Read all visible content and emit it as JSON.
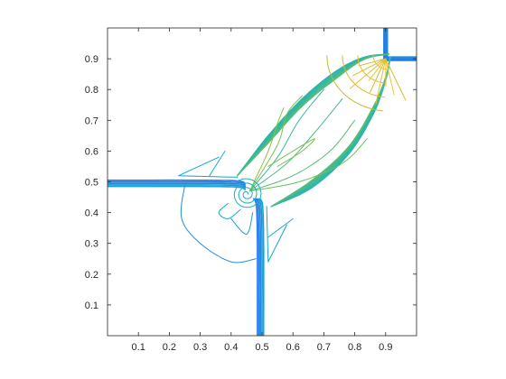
{
  "chart_data": {
    "type": "contour",
    "title": "",
    "xlabel": "",
    "ylabel": "",
    "xlim": [
      0,
      1
    ],
    "ylim": [
      0,
      1
    ],
    "grid": false,
    "legend": "none",
    "colormap": "parula",
    "x_ticks": [
      0.1,
      0.2,
      0.3,
      0.4,
      0.5,
      0.6,
      0.7,
      0.8,
      0.9
    ],
    "x_tick_labels": [
      "0.1",
      "0.2",
      "0.3",
      "0.4",
      "0.5",
      "0.6",
      "0.7",
      "0.8",
      "0.9"
    ],
    "y_ticks": [
      0.1,
      0.2,
      0.3,
      0.4,
      0.5,
      0.6,
      0.7,
      0.8,
      0.9
    ],
    "y_tick_labels": [
      "0.1",
      "0.2",
      "0.3",
      "0.4",
      "0.5",
      "0.6",
      "0.7",
      "0.8",
      "0.9"
    ],
    "features": {
      "contact_x": 0.5,
      "contact_y": 0.5,
      "upper_shock_x": 0.9,
      "upper_shock_y": 0.9,
      "jet_tip": [
        0.91,
        0.915
      ],
      "vortex_center": [
        0.45,
        0.46
      ]
    },
    "colors": {
      "low": "#2a6fe6",
      "mid_low": "#11a9d6",
      "mid": "#37b89a",
      "mid_high": "#8cc43a",
      "high": "#d8ba2c",
      "top": "#f4c430"
    }
  }
}
